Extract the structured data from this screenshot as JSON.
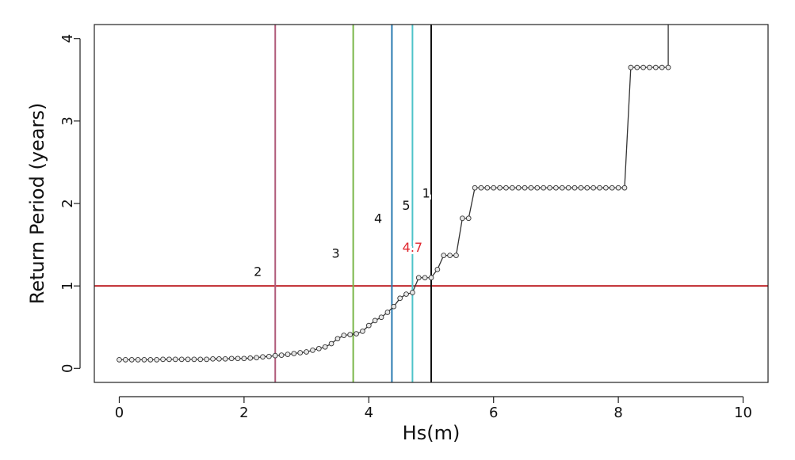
{
  "chart_data": {
    "type": "line",
    "title": "",
    "xlabel": "Hs(m)",
    "ylabel": "Return Period (years)",
    "xlim": [
      -0.4,
      10.4
    ],
    "ylim": [
      -0.17,
      4.17
    ],
    "xticks": [
      0,
      2,
      4,
      6,
      8,
      10
    ],
    "xtick_labels": [
      "0",
      "2",
      "4",
      "6",
      "8",
      "10"
    ],
    "yticks": [
      0,
      1,
      2,
      3,
      4
    ],
    "ytick_labels": [
      "0",
      "1",
      "2",
      "3",
      "4"
    ],
    "grid": false,
    "legend": "none",
    "series": [
      {
        "points": [
          [
            0.0,
            0.105
          ],
          [
            0.1,
            0.105
          ],
          [
            0.2,
            0.105
          ],
          [
            0.3,
            0.105
          ],
          [
            0.4,
            0.105
          ],
          [
            0.5,
            0.105
          ],
          [
            0.6,
            0.105
          ],
          [
            0.7,
            0.11
          ],
          [
            0.8,
            0.11
          ],
          [
            0.9,
            0.11
          ],
          [
            1.0,
            0.11
          ],
          [
            1.1,
            0.11
          ],
          [
            1.2,
            0.11
          ],
          [
            1.3,
            0.11
          ],
          [
            1.4,
            0.11
          ],
          [
            1.5,
            0.115
          ],
          [
            1.6,
            0.115
          ],
          [
            1.7,
            0.115
          ],
          [
            1.8,
            0.12
          ],
          [
            1.9,
            0.12
          ],
          [
            2.0,
            0.12
          ],
          [
            2.1,
            0.125
          ],
          [
            2.2,
            0.13
          ],
          [
            2.3,
            0.14
          ],
          [
            2.4,
            0.145
          ],
          [
            2.5,
            0.155
          ],
          [
            2.6,
            0.16
          ],
          [
            2.7,
            0.17
          ],
          [
            2.8,
            0.18
          ],
          [
            2.9,
            0.19
          ],
          [
            3.0,
            0.2
          ],
          [
            3.1,
            0.22
          ],
          [
            3.2,
            0.24
          ],
          [
            3.3,
            0.26
          ],
          [
            3.4,
            0.3
          ],
          [
            3.5,
            0.36
          ],
          [
            3.6,
            0.4
          ],
          [
            3.7,
            0.41
          ],
          [
            3.8,
            0.42
          ],
          [
            3.9,
            0.45
          ],
          [
            4.0,
            0.52
          ],
          [
            4.1,
            0.58
          ],
          [
            4.2,
            0.62
          ],
          [
            4.3,
            0.68
          ],
          [
            4.4,
            0.75
          ],
          [
            4.5,
            0.85
          ],
          [
            4.6,
            0.9
          ],
          [
            4.7,
            0.92
          ],
          [
            4.8,
            1.1
          ],
          [
            4.9,
            1.1
          ],
          [
            5.0,
            1.1
          ],
          [
            5.1,
            1.2
          ],
          [
            5.2,
            1.37
          ],
          [
            5.3,
            1.37
          ],
          [
            5.4,
            1.37
          ],
          [
            5.5,
            1.82
          ],
          [
            5.6,
            1.82
          ],
          [
            5.7,
            2.19
          ],
          [
            5.8,
            2.19
          ],
          [
            5.9,
            2.19
          ],
          [
            6.0,
            2.19
          ],
          [
            6.1,
            2.19
          ],
          [
            6.2,
            2.19
          ],
          [
            6.3,
            2.19
          ],
          [
            6.4,
            2.19
          ],
          [
            6.5,
            2.19
          ],
          [
            6.6,
            2.19
          ],
          [
            6.7,
            2.19
          ],
          [
            6.8,
            2.19
          ],
          [
            6.9,
            2.19
          ],
          [
            7.0,
            2.19
          ],
          [
            7.1,
            2.19
          ],
          [
            7.2,
            2.19
          ],
          [
            7.3,
            2.19
          ],
          [
            7.4,
            2.19
          ],
          [
            7.5,
            2.19
          ],
          [
            7.6,
            2.19
          ],
          [
            7.7,
            2.19
          ],
          [
            7.8,
            2.19
          ],
          [
            7.9,
            2.19
          ],
          [
            8.0,
            2.19
          ],
          [
            8.1,
            2.19
          ],
          [
            8.2,
            3.65
          ],
          [
            8.3,
            3.65
          ],
          [
            8.4,
            3.65
          ],
          [
            8.5,
            3.65
          ],
          [
            8.6,
            3.65
          ],
          [
            8.7,
            3.65
          ],
          [
            8.8,
            3.65
          ]
        ],
        "tail_to": [
          8.8,
          4.17
        ],
        "color": "#333333"
      }
    ],
    "hlines": [
      {
        "y": 1.0,
        "color": "#c0282d"
      }
    ],
    "vlines": [
      {
        "x": 2.5,
        "color": "#b05a7a",
        "label": "2",
        "label_x": 2.22,
        "label_y": 1.18,
        "label_color": "#111111"
      },
      {
        "x": 3.75,
        "color": "#7ab648",
        "label": "3",
        "label_x": 3.47,
        "label_y": 1.4,
        "label_color": "#111111"
      },
      {
        "x": 4.37,
        "color": "#2a7ab0",
        "label": "4",
        "label_x": 4.15,
        "label_y": 1.82,
        "label_color": "#111111"
      },
      {
        "x": 4.7,
        "color": "#4ec3c9",
        "label": "5",
        "label_x": 4.6,
        "label_y": 1.98,
        "label_color": "#111111"
      },
      {
        "x": 5.0,
        "color": "#111111",
        "label": "1",
        "label_x": 4.92,
        "label_y": 2.13,
        "label_color": "#111111"
      }
    ],
    "annotations": [
      {
        "text": "4.7",
        "x": 4.7,
        "y": 1.47,
        "color": "#e0262e"
      }
    ]
  }
}
